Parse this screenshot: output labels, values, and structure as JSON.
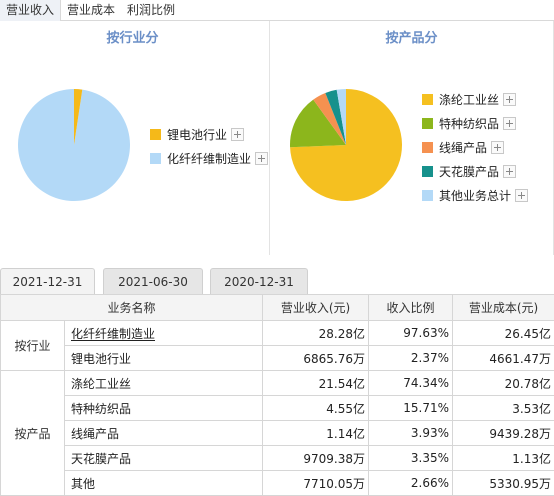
{
  "top_tabs": [
    "营业收入",
    "营业成本",
    "利润比例"
  ],
  "industry_panel": {
    "title": "按行业分",
    "legend": [
      {
        "label": "锂电池行业",
        "color": "#f5b919"
      },
      {
        "label": "化纤纤维制造业",
        "color": "#b3d9f7"
      }
    ]
  },
  "product_panel": {
    "title": "按产品分",
    "legend": [
      {
        "label": "涤纶工业丝",
        "color": "#f5c020"
      },
      {
        "label": "特种纺织品",
        "color": "#8cb61c"
      },
      {
        "label": "线绳产品",
        "color": "#f59150"
      },
      {
        "label": "天花膜产品",
        "color": "#16918c"
      },
      {
        "label": "其他业务总计",
        "color": "#b3d9f7"
      }
    ]
  },
  "date_tabs": [
    "2021-12-31",
    "2021-06-30",
    "2020-12-31"
  ],
  "table": {
    "headers": [
      "业务名称",
      "营业收入(元)",
      "收入比例",
      "营业成本(元)"
    ],
    "groups": [
      {
        "label": "按行业",
        "rows": [
          {
            "name": "化纤纤维制造业",
            "revenue": "28.28亿",
            "ratio": "97.63%",
            "cost": "26.45亿"
          },
          {
            "name": "锂电池行业",
            "revenue": "6865.76万",
            "ratio": "2.37%",
            "cost": "4661.47万"
          }
        ]
      },
      {
        "label": "按产品",
        "rows": [
          {
            "name": "涤纶工业丝",
            "revenue": "21.54亿",
            "ratio": "74.34%",
            "cost": "20.78亿"
          },
          {
            "name": "特种纺织品",
            "revenue": "4.55亿",
            "ratio": "15.71%",
            "cost": "3.53亿"
          },
          {
            "name": "线绳产品",
            "revenue": "1.14亿",
            "ratio": "3.93%",
            "cost": "9439.28万"
          },
          {
            "name": "天花膜产品",
            "revenue": "9709.38万",
            "ratio": "3.35%",
            "cost": "1.13亿"
          },
          {
            "name": "其他",
            "revenue": "7710.05万",
            "ratio": "2.66%",
            "cost": "5330.95万"
          }
        ]
      }
    ]
  },
  "chart_data": [
    {
      "type": "pie",
      "title": "按行业分",
      "categories": [
        "化纤纤维制造业",
        "锂电池行业"
      ],
      "values": [
        97.63,
        2.37
      ],
      "colors": [
        "#b3d9f7",
        "#f5b919"
      ],
      "legend": "right"
    },
    {
      "type": "pie",
      "title": "按产品分",
      "categories": [
        "涤纶工业丝",
        "特种纺织品",
        "线绳产品",
        "天花膜产品",
        "其他业务总计"
      ],
      "values": [
        74.34,
        15.71,
        3.93,
        3.35,
        2.66
      ],
      "colors": [
        "#f5c020",
        "#8cb61c",
        "#f59150",
        "#16918c",
        "#b3d9f7"
      ],
      "legend": "right"
    }
  ]
}
